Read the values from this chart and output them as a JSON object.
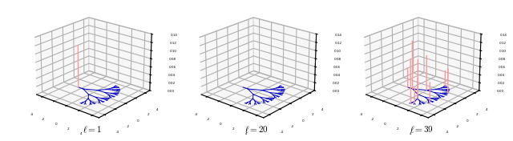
{
  "titles": [
    "$\\ell = 1$",
    "$\\ell = 20$",
    "$\\ell = 39$"
  ],
  "figsize": [
    6.4,
    1.76
  ],
  "dpi": 100,
  "tree_edge_color": "#0000cc",
  "bar_color": "#ff9999",
  "axis_xlim": [
    -5,
    5
  ],
  "axis_ylim": [
    -5,
    5
  ],
  "axis_zlim": [
    0,
    0.14
  ],
  "z_ticks": [
    0.0,
    0.02,
    0.04,
    0.06,
    0.08,
    0.1,
    0.12,
    0.14
  ],
  "xy_ticks": [
    -4,
    -2,
    0,
    2,
    4
  ],
  "elev": 22,
  "azim": -50
}
